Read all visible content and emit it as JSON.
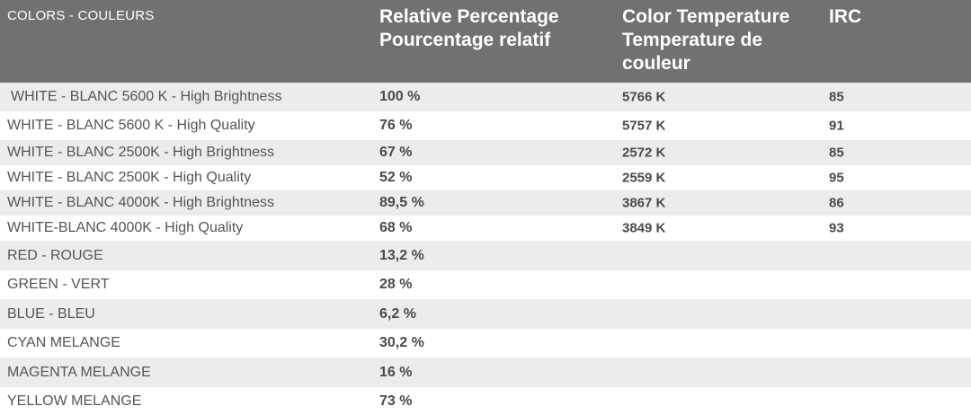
{
  "header": {
    "colors": "COLORS - COULEURS",
    "relative_line1": "Relative Percentage",
    "relative_line2": "Pourcentage relatif",
    "temp_line1": "Color Temperature",
    "temp_line2": "Temperature de",
    "temp_line3": "couleur",
    "irc": "IRC"
  },
  "rows": [
    {
      "name": "WHITE - BLANC 5600 K - High Brightness",
      "pct": "100 %",
      "temp": "5766 K",
      "irc": "85"
    },
    {
      "name": "WHITE - BLANC 5600 K - High Quality",
      "pct": "76 %",
      "temp": "5757 K",
      "irc": "91"
    },
    {
      "name": "WHITE - BLANC 2500K - High Brightness",
      "pct": "67 %",
      "temp": "2572 K",
      "irc": "85"
    },
    {
      "name": "WHITE - BLANC 2500K - High Quality",
      "pct": "52 %",
      "temp": "2559 K",
      "irc": "95"
    },
    {
      "name": "WHITE - BLANC 4000K - High Brightness",
      "pct": "89,5 %",
      "temp": "3867 K",
      "irc": "86"
    },
    {
      "name": "WHITE-BLANC 4000K - High Quality",
      "pct": "68 %",
      "temp": "3849 K",
      "irc": "93"
    },
    {
      "name": "RED - ROUGE",
      "pct": "13,2 %",
      "temp": "",
      "irc": ""
    },
    {
      "name": "GREEN - VERT",
      "pct": "28 %",
      "temp": "",
      "irc": ""
    },
    {
      "name": "BLUE - BLEU",
      "pct": "6,2 %",
      "temp": "",
      "irc": ""
    },
    {
      "name": "CYAN MELANGE",
      "pct": "30,2 %",
      "temp": "",
      "irc": ""
    },
    {
      "name": "MAGENTA MELANGE",
      "pct": "16 %",
      "temp": "",
      "irc": ""
    },
    {
      "name": "YELLOW MELANGE",
      "pct": "73 %",
      "temp": "",
      "irc": ""
    }
  ]
}
